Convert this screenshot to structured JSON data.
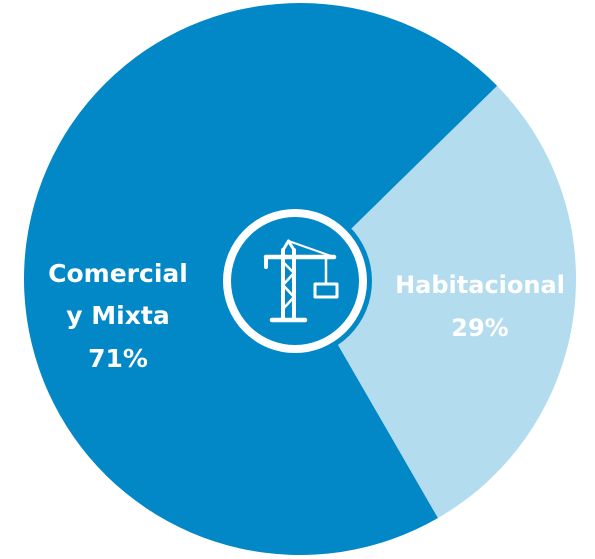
{
  "chart_data": {
    "type": "pie",
    "title": "",
    "center_icon": "crane-icon",
    "slices": [
      {
        "label_lines": [
          "Comercial",
          "y Mixta"
        ],
        "value": 71,
        "value_label": "71%",
        "color": "#0288c7"
      },
      {
        "label_lines": [
          "Habitacional"
        ],
        "value": 29,
        "value_label": "29%",
        "color": "#b3dcef"
      }
    ]
  }
}
